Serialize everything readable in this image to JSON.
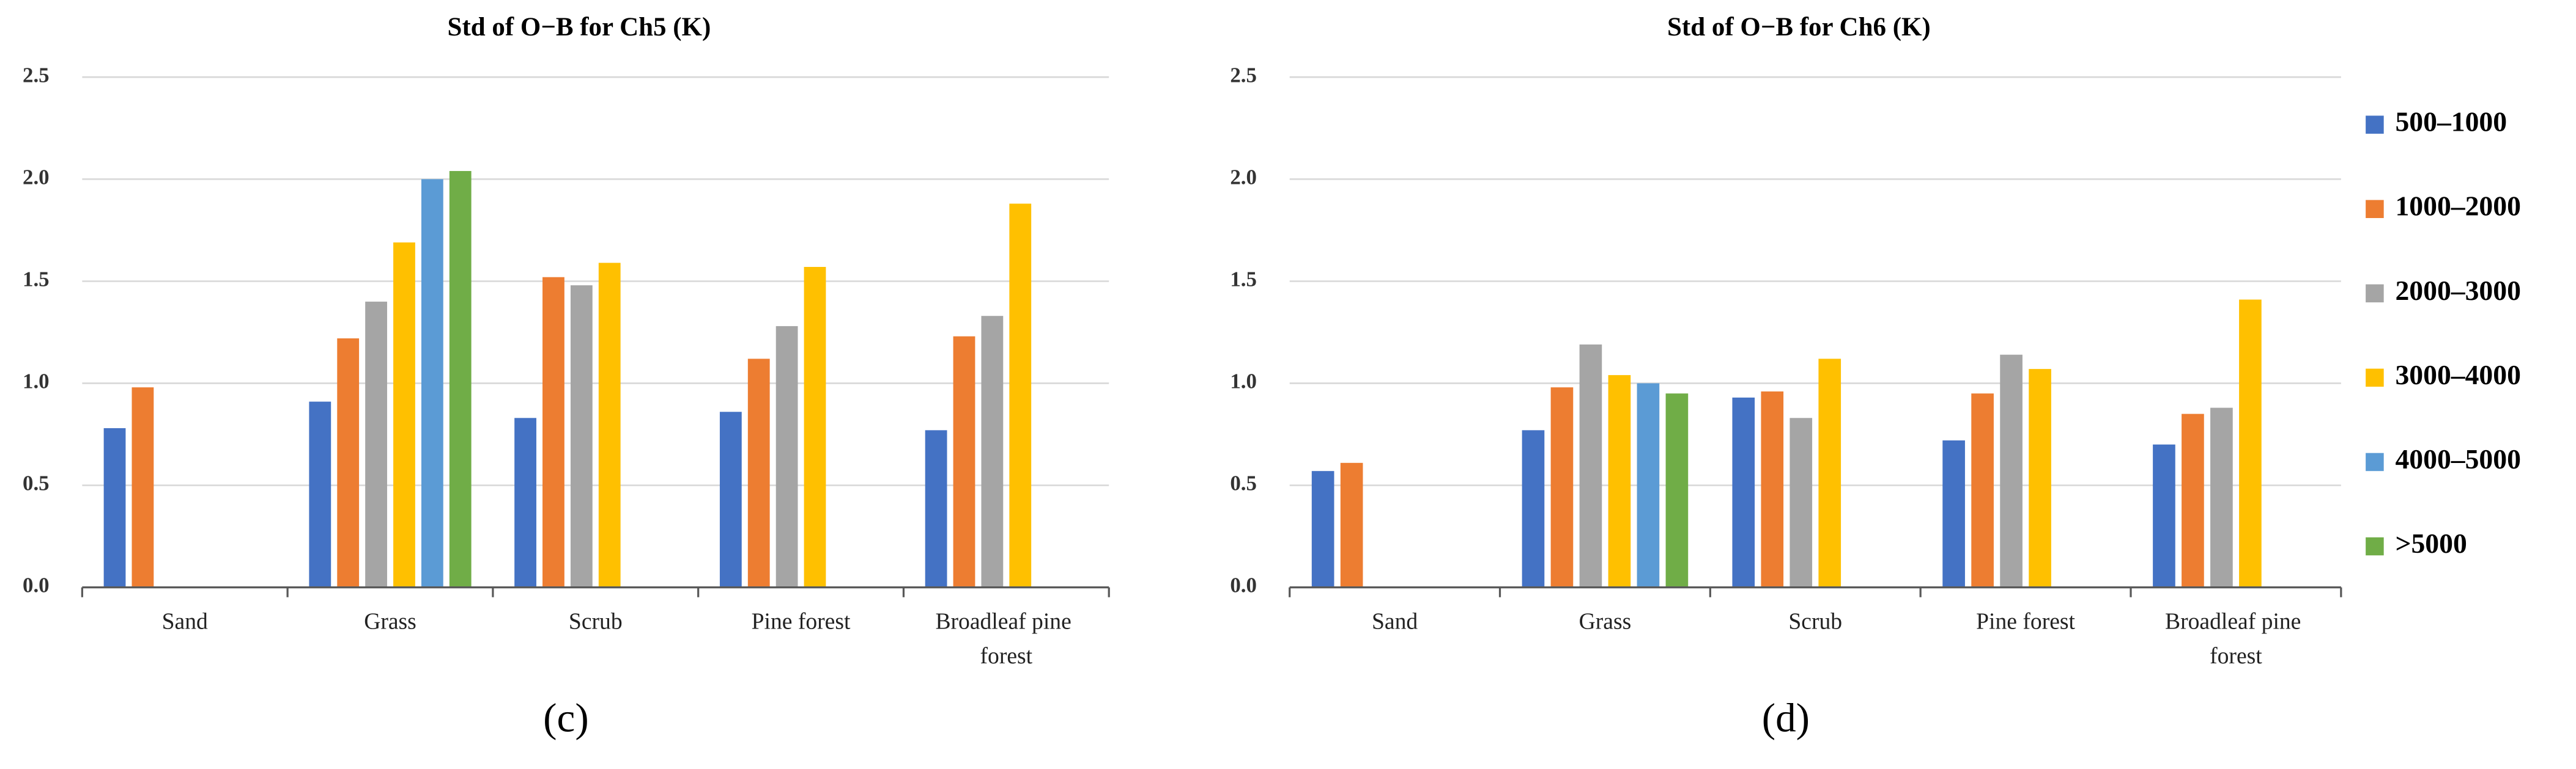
{
  "chart_data": [
    {
      "type": "bar",
      "title": "Std of O−B for Ch5 (K)",
      "caption": "(c)",
      "categories": [
        "Sand",
        "Grass",
        "Scrub",
        "Pine forest",
        "Broadleaf pine forest"
      ],
      "series": [
        {
          "name": "500–1000",
          "color": "#4472c4",
          "values": [
            0.78,
            0.91,
            0.83,
            0.86,
            0.77
          ]
        },
        {
          "name": "1000–2000",
          "color": "#ed7d31",
          "values": [
            0.98,
            1.22,
            1.52,
            1.12,
            1.23
          ]
        },
        {
          "name": "2000–3000",
          "color": "#a5a5a5",
          "values": [
            null,
            1.4,
            1.48,
            1.28,
            1.33
          ]
        },
        {
          "name": "3000–4000",
          "color": "#ffc000",
          "values": [
            null,
            1.69,
            1.59,
            1.57,
            1.88
          ]
        },
        {
          "name": "4000–5000",
          "color": "#5b9bd5",
          "values": [
            null,
            2.0,
            null,
            null,
            null
          ]
        },
        {
          "name": ">5000",
          "color": "#70ad47",
          "values": [
            null,
            2.04,
            null,
            null,
            null
          ]
        }
      ],
      "ylim": [
        0,
        2.5
      ],
      "yticks": [
        {
          "value": 0,
          "label": "0.0"
        },
        {
          "value": 0.5,
          "label": "0.5"
        },
        {
          "value": 1,
          "label": "1.0"
        },
        {
          "value": 1.5,
          "label": "1.5"
        },
        {
          "value": 2,
          "label": "2.0"
        },
        {
          "value": 2.5,
          "label": "2.5"
        }
      ],
      "grid": true,
      "legend": false
    },
    {
      "type": "bar",
      "title": "Std of O−B for Ch6 (K)",
      "caption": "(d)",
      "categories": [
        "Sand",
        "Grass",
        "Scrub",
        "Pine forest",
        "Broadleaf pine forest"
      ],
      "series": [
        {
          "name": "500–1000",
          "color": "#4472c4",
          "values": [
            0.57,
            0.77,
            0.93,
            0.72,
            0.7
          ]
        },
        {
          "name": "1000–2000",
          "color": "#ed7d31",
          "values": [
            0.61,
            0.98,
            0.96,
            0.95,
            0.85
          ]
        },
        {
          "name": "2000–3000",
          "color": "#a5a5a5",
          "values": [
            null,
            1.19,
            0.83,
            1.14,
            0.88
          ]
        },
        {
          "name": "3000–4000",
          "color": "#ffc000",
          "values": [
            null,
            1.04,
            1.12,
            1.07,
            1.41
          ]
        },
        {
          "name": "4000–5000",
          "color": "#5b9bd5",
          "values": [
            null,
            1.0,
            null,
            null,
            null
          ]
        },
        {
          "name": ">5000",
          "color": "#70ad47",
          "values": [
            null,
            0.95,
            null,
            null,
            null
          ]
        }
      ],
      "ylim": [
        0,
        2.5
      ],
      "yticks": [
        {
          "value": 0,
          "label": "0.0"
        },
        {
          "value": 0.5,
          "label": "0.5"
        },
        {
          "value": 1,
          "label": "1.0"
        },
        {
          "value": 1.5,
          "label": "1.5"
        },
        {
          "value": 2,
          "label": "2.0"
        },
        {
          "value": 2.5,
          "label": "2.5"
        }
      ],
      "grid": true,
      "legend": "right"
    }
  ]
}
